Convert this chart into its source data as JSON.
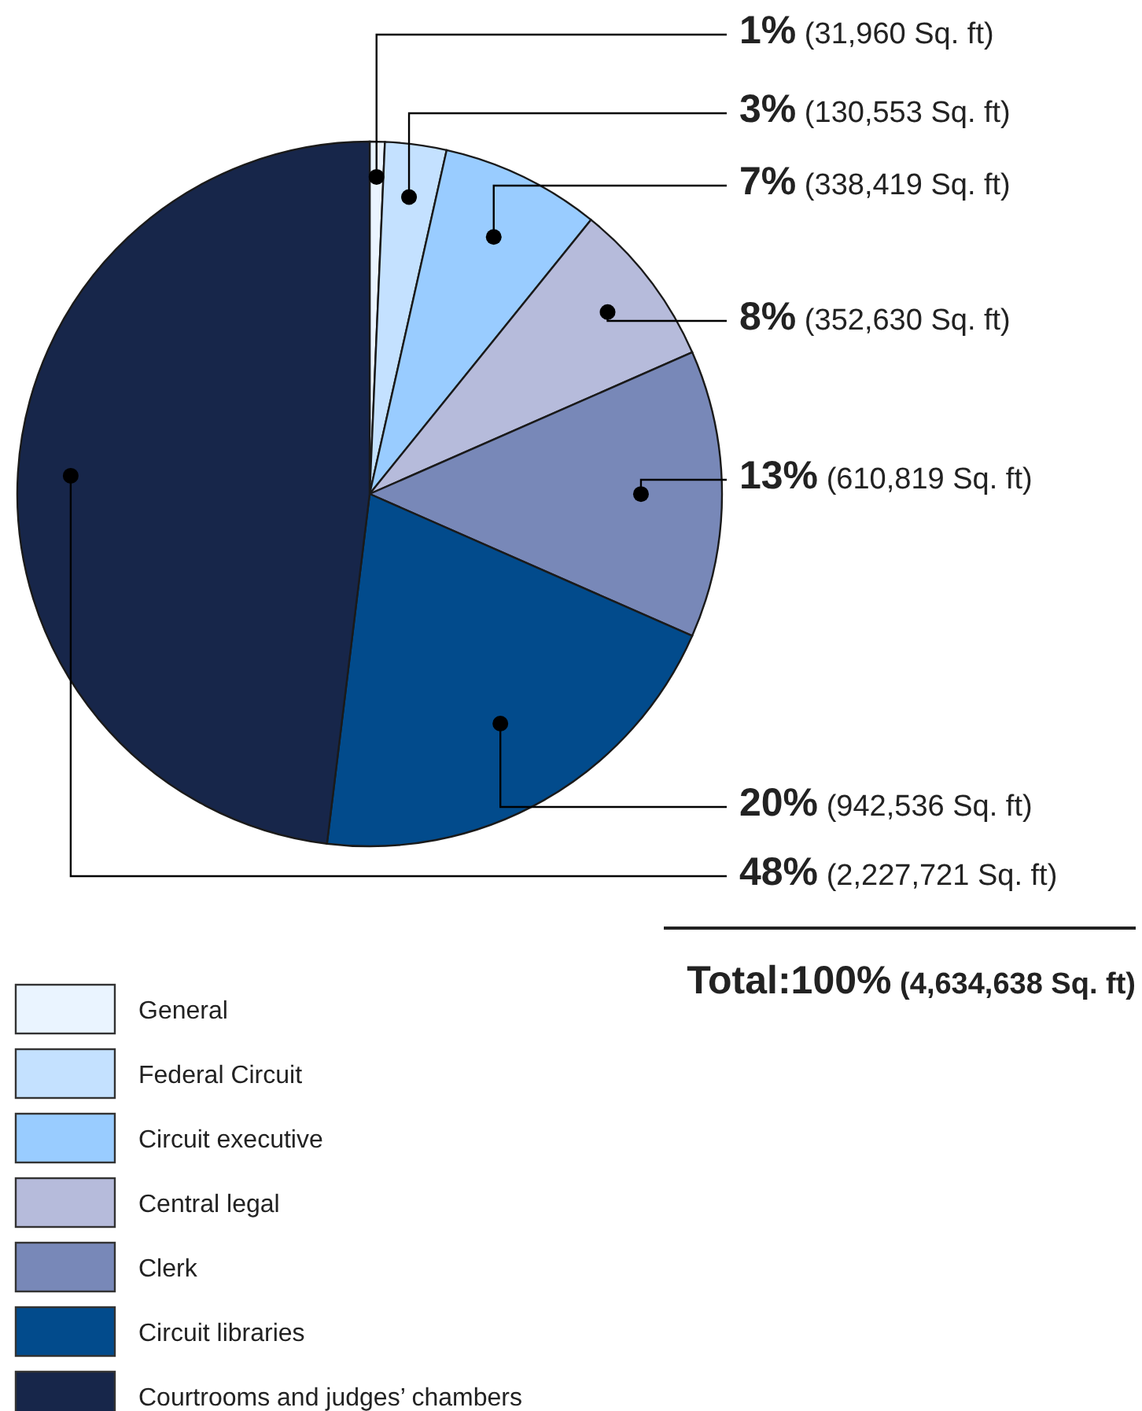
{
  "chart_data": {
    "type": "pie",
    "categories": [
      "General",
      "Federal Circuit",
      "Circuit executive",
      "Central legal",
      "Clerk",
      "Circuit libraries",
      "Courtrooms and judges’ chambers"
    ],
    "values": [
      31960,
      130553,
      338419,
      352630,
      610819,
      942536,
      2227721
    ],
    "colors": [
      "#eaf4ff",
      "#c4e1ff",
      "#99ccff",
      "#b6bbdb",
      "#7888b8",
      "#024b8c",
      "#17264a"
    ],
    "value_labels": [
      "1% (31,960 Sq. ft)",
      "3% (130,553 Sq. ft)",
      "7% (338,419 Sq. ft)",
      "8% (352,630 Sq. ft)",
      "13% (610,819 Sq. ft)",
      "20% (942,536 Sq. ft)",
      "48% (2,227,721 Sq. ft)"
    ],
    "annotations": [
      "Total:100% (4,634,638 Sq. ft)"
    ],
    "legend": "bottom"
  }
}
